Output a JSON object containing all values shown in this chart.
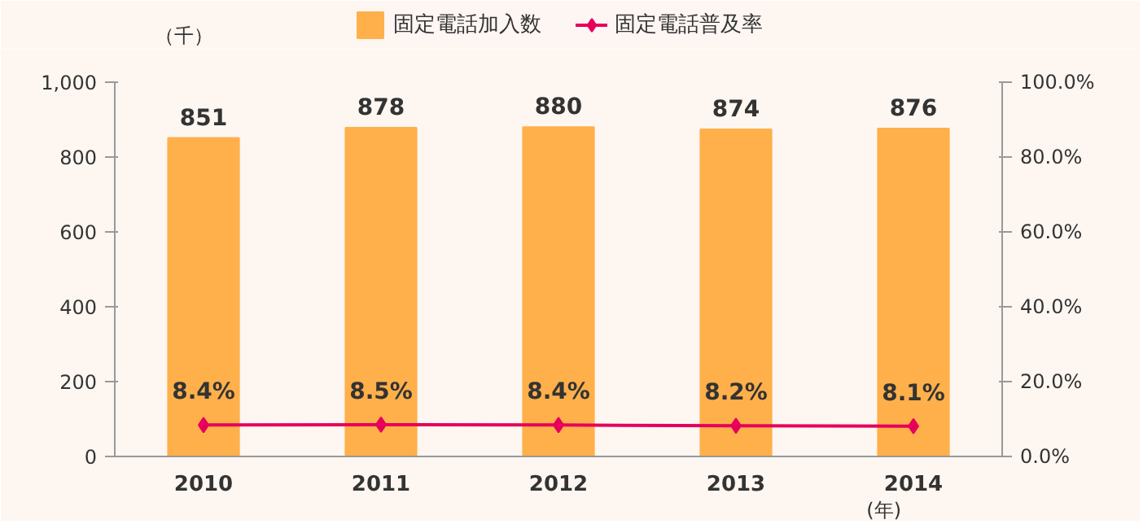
{
  "chart_data": {
    "type": "bar",
    "categories": [
      "2010",
      "2011",
      "2012",
      "2013",
      "2014"
    ],
    "series": [
      {
        "name": "固定電話加入数",
        "color": "#ffb04a",
        "values": [
          851,
          878,
          880,
          874,
          876
        ],
        "value_labels": [
          "851",
          "878",
          "880",
          "874",
          "876"
        ]
      },
      {
        "name": "固定電話普及率",
        "type": "line",
        "axis": "y2",
        "color": "#e6005c",
        "values": [
          8.4,
          8.5,
          8.4,
          8.2,
          8.1
        ],
        "value_labels": [
          "8.4%",
          "8.5%",
          "8.4%",
          "8.2%",
          "8.1%"
        ],
        "marker": "diamond"
      }
    ],
    "ylabel": "（千）",
    "xlabel": "(年)",
    "legend": "top",
    "grid": false,
    "ylim": [
      0,
      1000
    ],
    "yticks": [
      0,
      200,
      400,
      600,
      800,
      {
        "value": 1000,
        "label": "1,000"
      }
    ],
    "y2lim": [
      0,
      100
    ],
    "y2ticks": [
      {
        "value": 0,
        "label": "0.0%"
      },
      {
        "value": 20,
        "label": "20.0%"
      },
      {
        "value": 40,
        "label": "40.0%"
      },
      {
        "value": 60,
        "label": "60.0%"
      },
      {
        "value": 80,
        "label": "80.0%"
      },
      {
        "value": 100,
        "label": "100.0%"
      }
    ]
  }
}
